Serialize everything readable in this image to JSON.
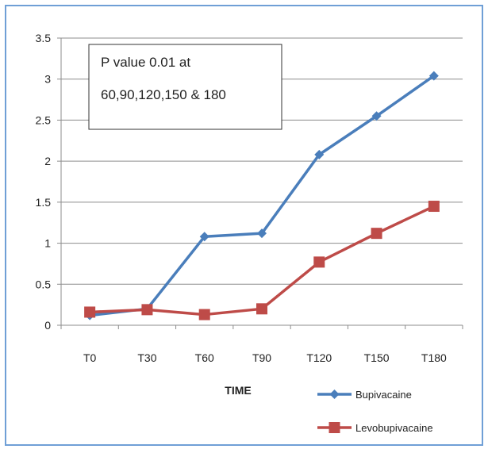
{
  "chart_data": {
    "type": "line",
    "title": "",
    "xlabel": "TIME",
    "ylabel": "",
    "categories": [
      "T0",
      "T30",
      "T60",
      "T90",
      "T120",
      "T150",
      "T180"
    ],
    "ylim": [
      0,
      3.5
    ],
    "yticks": [
      "0",
      "0.5",
      "1",
      "1.5",
      "2",
      "2.5",
      "3",
      "3.5"
    ],
    "grid": true,
    "legend_position": "bottom-right",
    "series": [
      {
        "name": "Bupivacaine",
        "color": "#4a7ebb",
        "marker": "diamond",
        "values": [
          0.12,
          0.2,
          1.08,
          1.12,
          2.08,
          2.55,
          3.04
        ]
      },
      {
        "name": "Levobupivacaine",
        "color": "#be4b48",
        "marker": "square",
        "values": [
          0.16,
          0.19,
          0.13,
          0.2,
          0.77,
          1.12,
          1.45
        ]
      }
    ],
    "annotation": {
      "line1": "P value 0.01 at",
      "line2": "60,90,120,150 & 180"
    }
  }
}
